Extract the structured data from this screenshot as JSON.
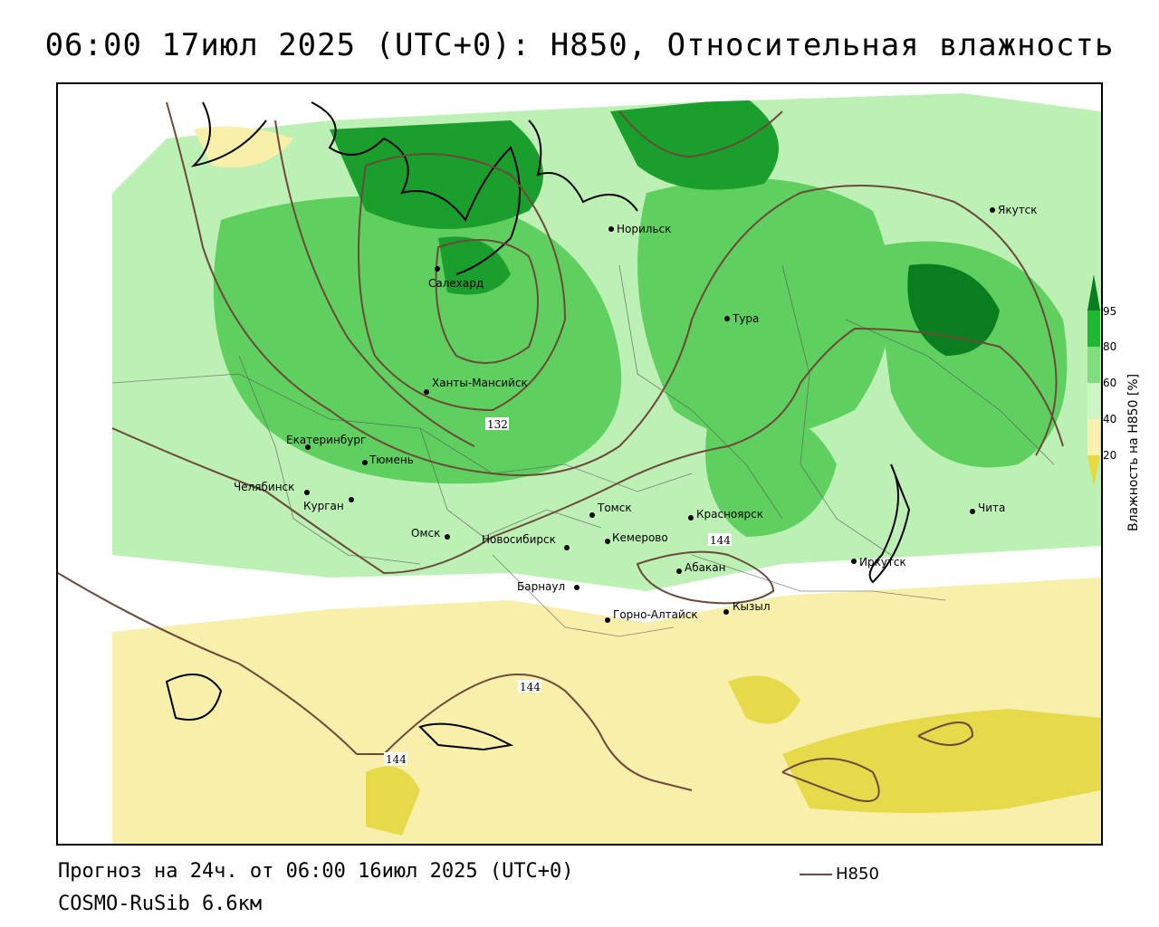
{
  "title": "06:00 17июл 2025 (UTC+0): H850, Относительная влажность",
  "footer": {
    "forecast": "Прогноз на 24ч. от 06:00 16июл 2025 (UTC+0)",
    "model": "COSMO-RuSib 6.6км",
    "contour_legend_label": "H850"
  },
  "legend": {
    "title": "Влажность на H850 [%]",
    "ticks": [
      "95",
      "80",
      "60",
      "40",
      "20"
    ],
    "colors": [
      "#0a7d1e",
      "#1fb833",
      "#7fdd7f",
      "#cdf5c5",
      "#ffffff",
      "#fbf0b0",
      "#e8db40"
    ]
  },
  "colors": {
    "contour": "#6b4a3a",
    "dry": "#f7efaa",
    "very_dry": "#e6d94a",
    "moist": "#bdf0b5",
    "wet": "#5fd05f",
    "very_wet": "#1a9e2c",
    "saturated": "#0a7d1e"
  },
  "contour_labels": [
    "132",
    "144",
    "144",
    "144"
  ],
  "cities": [
    {
      "name": "Норильск"
    },
    {
      "name": "Якутск"
    },
    {
      "name": "Салехард"
    },
    {
      "name": "Тура"
    },
    {
      "name": "Ханты-Мансийск"
    },
    {
      "name": "Екатеринбург"
    },
    {
      "name": "Тюмень"
    },
    {
      "name": "Челябинск"
    },
    {
      "name": "Курган"
    },
    {
      "name": "Омск"
    },
    {
      "name": "Новосибирск"
    },
    {
      "name": "Томск"
    },
    {
      "name": "Кемерово"
    },
    {
      "name": "Красноярск"
    },
    {
      "name": "Абакан"
    },
    {
      "name": "Барнаул"
    },
    {
      "name": "Горно-Алтайск"
    },
    {
      "name": "Кызыл"
    },
    {
      "name": "Иркутск"
    },
    {
      "name": "Чита"
    }
  ]
}
